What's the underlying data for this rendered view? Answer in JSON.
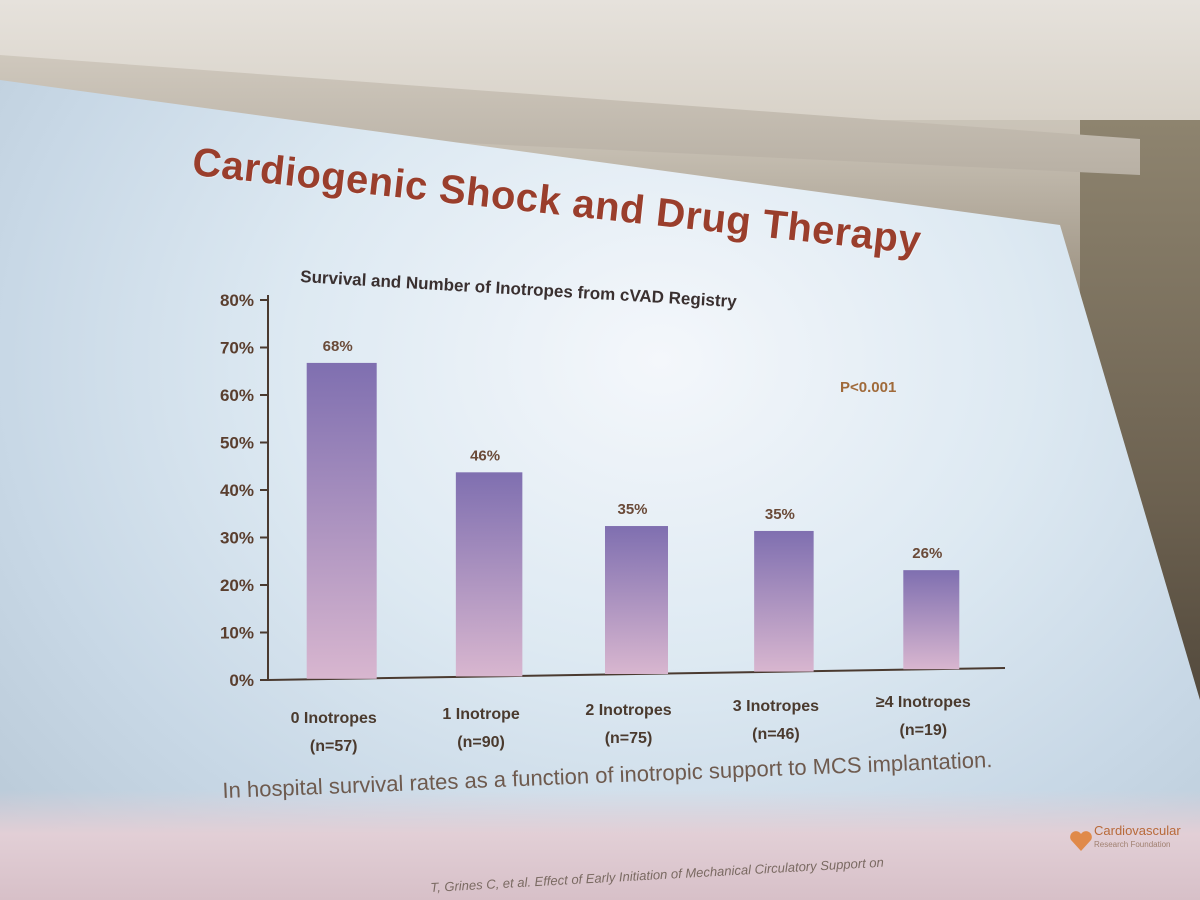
{
  "slide": {
    "title": "Cardiogenic Shock and Drug Therapy",
    "caption": "In hospital survival rates as a function of inotropic support to MCS implantation.",
    "citation": "T, Grines C, et al. Effect of Early Initiation of Mechanical Circulatory Support on",
    "logo_line1": "Cardiovascular",
    "logo_line2": "Research Foundation",
    "logo_icon": "heart-logo-icon",
    "colors": {
      "title": "#9a3e2c",
      "bar_top": "#7f6fb0",
      "bar_bottom": "#d8b6cf",
      "pvalue": "#a06a3a"
    }
  },
  "chart_data": {
    "type": "bar",
    "title": "Survival and Number of Inotropes from cVAD Registry",
    "annotation": "P<0.001",
    "categories": [
      {
        "line1": "0 Inotropes",
        "line2": "(n=57)"
      },
      {
        "line1": "1 Inotrope",
        "line2": "(n=90)"
      },
      {
        "line1": "2 Inotropes",
        "line2": "(n=75)"
      },
      {
        "line1": "3 Inotropes",
        "line2": "(n=46)"
      },
      {
        "line1": "≥4 Inotropes",
        "line2": "(n=19)"
      }
    ],
    "values": [
      68,
      46,
      35,
      35,
      26
    ],
    "value_labels": [
      "68%",
      "46%",
      "35%",
      "35%",
      "26%"
    ],
    "y_ticks": [
      "0%",
      "10%",
      "20%",
      "30%",
      "40%",
      "50%",
      "60%",
      "70%",
      "80%"
    ],
    "ylim": [
      0,
      80
    ],
    "grid": false,
    "legend": "none"
  }
}
